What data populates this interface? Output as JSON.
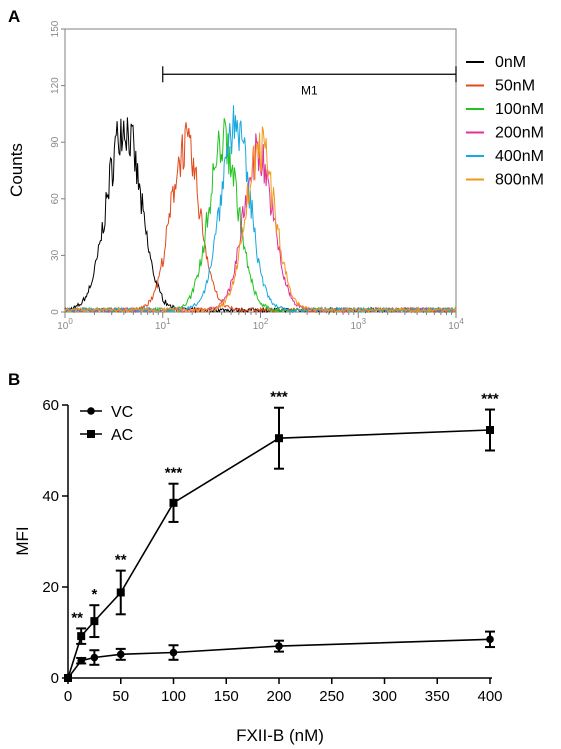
{
  "chart_data": [
    {
      "panel": "A",
      "type": "line",
      "ylabel": "Counts",
      "xscale": "log",
      "xlim": [
        1,
        10000
      ],
      "ylim": [
        0,
        150
      ],
      "yticks": [
        "0",
        "30",
        "60",
        "90",
        "120",
        "150"
      ],
      "xticks": [
        {
          "base": "10",
          "exp": "0"
        },
        {
          "base": "10",
          "exp": "1"
        },
        {
          "base": "10",
          "exp": "2"
        },
        {
          "base": "10",
          "exp": "3"
        },
        {
          "base": "10",
          "exp": "4"
        }
      ],
      "marker": {
        "label": "M1",
        "from": 10,
        "to": 10000,
        "y": 126
      },
      "series": [
        {
          "name": "0nM",
          "color": "#000000",
          "peak_x": 4,
          "peak_y": 98,
          "width": 0.17
        },
        {
          "name": "50nM",
          "color": "#e04a1a",
          "peak_x": 17,
          "peak_y": 87,
          "width": 0.15
        },
        {
          "name": "100nM",
          "color": "#22c322",
          "peak_x": 42,
          "peak_y": 90,
          "width": 0.15
        },
        {
          "name": "200nM",
          "color": "#e0309a",
          "peak_x": 95,
          "peak_y": 83,
          "width": 0.15
        },
        {
          "name": "400nM",
          "color": "#1aa8e0",
          "peak_x": 55,
          "peak_y": 98,
          "width": 0.15
        },
        {
          "name": "800nM",
          "color": "#f2961e",
          "peak_x": 100,
          "peak_y": 86,
          "width": 0.15
        }
      ]
    },
    {
      "panel": "B",
      "type": "line",
      "xlabel": "FXII-B (nM)",
      "ylabel": "MFI",
      "xlim": [
        0,
        400
      ],
      "ylim": [
        0,
        60
      ],
      "xticks": [
        "0",
        "50",
        "100",
        "150",
        "200",
        "250",
        "300",
        "350",
        "400"
      ],
      "yticks": [
        "0",
        "20",
        "40",
        "60"
      ],
      "series": [
        {
          "name": "VC",
          "marker": "circle",
          "x": [
            0,
            12.5,
            25,
            50,
            100,
            200,
            400
          ],
          "y": [
            0,
            3.8,
            4.5,
            5.2,
            5.6,
            7.0,
            8.5
          ],
          "err": [
            0,
            0.6,
            1.6,
            1.2,
            1.6,
            1.2,
            1.7
          ]
        },
        {
          "name": "AC",
          "marker": "square",
          "x": [
            0,
            12.5,
            25,
            50,
            100,
            200,
            400
          ],
          "y": [
            0,
            9.2,
            12.5,
            18.8,
            38.5,
            52.7,
            54.5
          ],
          "err": [
            0,
            1.7,
            3.5,
            4.8,
            4.2,
            6.7,
            4.5
          ]
        }
      ],
      "annotations": [
        {
          "x": 12.5,
          "text": "**"
        },
        {
          "x": 25,
          "text": "*"
        },
        {
          "x": 50,
          "text": "**"
        },
        {
          "x": 100,
          "text": "***"
        },
        {
          "x": 200,
          "text": "***"
        },
        {
          "x": 400,
          "text": "***"
        }
      ]
    }
  ]
}
